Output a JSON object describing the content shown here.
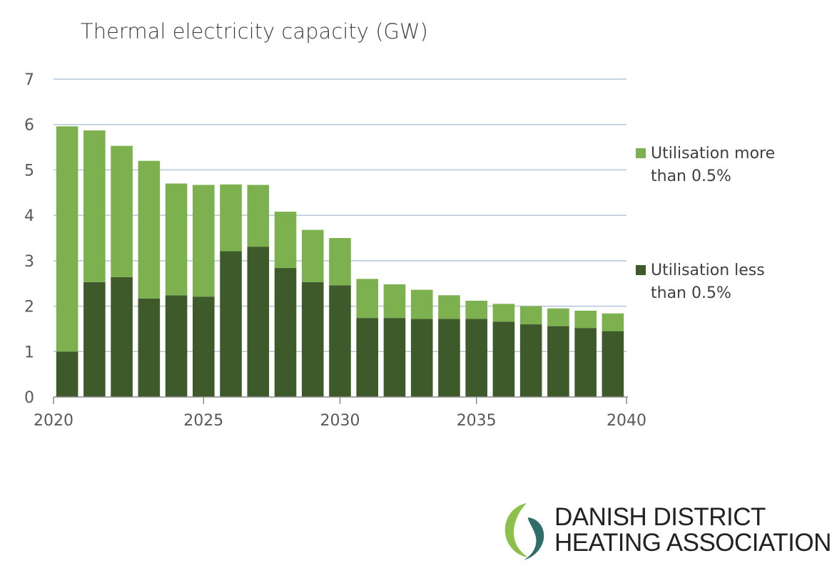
{
  "chart_data": {
    "type": "bar",
    "stacked": true,
    "title": "Thermal electricity capacity (GW)",
    "xlabel": "",
    "ylabel": "",
    "ylim": [
      0,
      7
    ],
    "yticks": [
      "0",
      "1",
      "2",
      "3",
      "4",
      "5",
      "6",
      "7"
    ],
    "xticks": [
      "2020",
      "2025",
      "2030",
      "2035",
      "2040"
    ],
    "categories": [
      "2020",
      "2021",
      "2022",
      "2023",
      "2024",
      "2025",
      "2026",
      "2027",
      "2028",
      "2029",
      "2030",
      "2031",
      "2032",
      "2033",
      "2034",
      "2035",
      "2036",
      "2037",
      "2038",
      "2039",
      "2040"
    ],
    "series": [
      {
        "name": "Utilisation less than 0.5%",
        "color": "#3e5a2a",
        "values": [
          1.0,
          2.53,
          2.64,
          2.17,
          2.24,
          2.21,
          3.21,
          3.31,
          2.84,
          2.53,
          2.46,
          1.74,
          1.74,
          1.72,
          1.72,
          1.72,
          1.66,
          1.6,
          1.56,
          1.52,
          1.45
        ]
      },
      {
        "name": "Utilisation more than 0.5%",
        "color": "#7db04e",
        "values": [
          4.96,
          3.34,
          2.89,
          3.03,
          2.46,
          2.46,
          1.47,
          1.36,
          1.24,
          1.15,
          1.04,
          0.86,
          0.74,
          0.64,
          0.52,
          0.4,
          0.39,
          0.4,
          0.39,
          0.38,
          0.39
        ]
      }
    ],
    "legend": [
      {
        "lines": [
          "Utilisation more",
          "than 0.5%"
        ],
        "color": "#7db04e"
      },
      {
        "lines": [
          "Utilisation less",
          "than 0.5%"
        ],
        "color": "#3e5a2a"
      }
    ],
    "grid": true,
    "legend_position": "right"
  },
  "logo": {
    "line1": "DANISH DISTRICT",
    "line2": "HEATING ASSOCIATION"
  }
}
